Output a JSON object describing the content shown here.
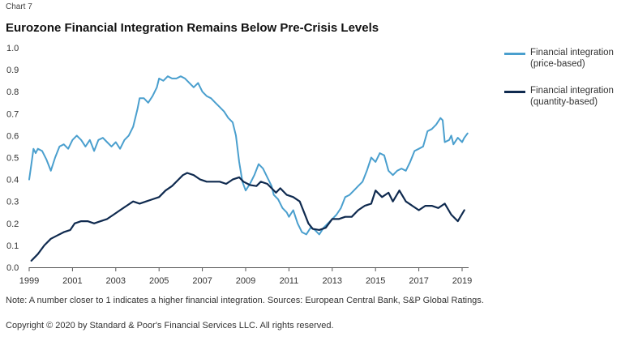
{
  "header": {
    "chart_label": "Chart 7",
    "title": "Eurozone Financial Integration Remains Below Pre-Crisis Levels"
  },
  "legend": {
    "items": [
      {
        "line1": "Financial integration",
        "line2": "(price-based)",
        "color": "#4a9fce"
      },
      {
        "line1": "Financial integration",
        "line2": "(quantity-based)",
        "color": "#0f2a4f"
      }
    ]
  },
  "footer": {
    "note": "Note: A number closer to 1 indicates a higher financial integration. Sources: European Central Bank, S&P Global Ratings.",
    "copyright": "Copyright © 2020 by Standard & Poor's Financial Services LLC. All rights reserved."
  },
  "chart_data": {
    "type": "line",
    "title": "Eurozone Financial Integration Remains Below Pre-Crisis Levels",
    "xlabel": "",
    "ylabel": "",
    "xlim": [
      1999,
      2019.3
    ],
    "ylim": [
      0,
      1.0
    ],
    "y_ticks": [
      "0.0",
      "0.1",
      "0.2",
      "0.3",
      "0.4",
      "0.5",
      "0.6",
      "0.7",
      "0.8",
      "0.9",
      "1.0"
    ],
    "x_ticks": [
      "1999",
      "2001",
      "2003",
      "2005",
      "2007",
      "2009",
      "2011",
      "2013",
      "2015",
      "2017",
      "2019"
    ],
    "grid": false,
    "legend_position": "right",
    "series": [
      {
        "name": "Financial integration (price-based)",
        "color": "#4a9fce",
        "points": [
          [
            1999.0,
            0.4
          ],
          [
            1999.1,
            0.47
          ],
          [
            1999.2,
            0.54
          ],
          [
            1999.3,
            0.52
          ],
          [
            1999.4,
            0.54
          ],
          [
            1999.6,
            0.53
          ],
          [
            1999.8,
            0.49
          ],
          [
            2000.0,
            0.44
          ],
          [
            2000.2,
            0.5
          ],
          [
            2000.4,
            0.55
          ],
          [
            2000.6,
            0.56
          ],
          [
            2000.8,
            0.54
          ],
          [
            2001.0,
            0.58
          ],
          [
            2001.2,
            0.6
          ],
          [
            2001.4,
            0.58
          ],
          [
            2001.6,
            0.55
          ],
          [
            2001.8,
            0.58
          ],
          [
            2002.0,
            0.53
          ],
          [
            2002.2,
            0.58
          ],
          [
            2002.4,
            0.59
          ],
          [
            2002.6,
            0.57
          ],
          [
            2002.8,
            0.55
          ],
          [
            2003.0,
            0.57
          ],
          [
            2003.2,
            0.54
          ],
          [
            2003.4,
            0.58
          ],
          [
            2003.6,
            0.6
          ],
          [
            2003.8,
            0.64
          ],
          [
            2004.0,
            0.72
          ],
          [
            2004.1,
            0.77
          ],
          [
            2004.3,
            0.77
          ],
          [
            2004.5,
            0.75
          ],
          [
            2004.7,
            0.78
          ],
          [
            2004.9,
            0.82
          ],
          [
            2005.0,
            0.86
          ],
          [
            2005.2,
            0.85
          ],
          [
            2005.4,
            0.87
          ],
          [
            2005.6,
            0.86
          ],
          [
            2005.8,
            0.86
          ],
          [
            2006.0,
            0.87
          ],
          [
            2006.2,
            0.86
          ],
          [
            2006.4,
            0.84
          ],
          [
            2006.6,
            0.82
          ],
          [
            2006.8,
            0.84
          ],
          [
            2007.0,
            0.8
          ],
          [
            2007.2,
            0.78
          ],
          [
            2007.4,
            0.77
          ],
          [
            2007.6,
            0.75
          ],
          [
            2007.8,
            0.73
          ],
          [
            2008.0,
            0.71
          ],
          [
            2008.2,
            0.68
          ],
          [
            2008.4,
            0.66
          ],
          [
            2008.55,
            0.6
          ],
          [
            2008.7,
            0.48
          ],
          [
            2008.85,
            0.39
          ],
          [
            2009.0,
            0.35
          ],
          [
            2009.2,
            0.38
          ],
          [
            2009.4,
            0.42
          ],
          [
            2009.6,
            0.47
          ],
          [
            2009.8,
            0.45
          ],
          [
            2010.0,
            0.41
          ],
          [
            2010.2,
            0.37
          ],
          [
            2010.3,
            0.33
          ],
          [
            2010.5,
            0.31
          ],
          [
            2010.7,
            0.27
          ],
          [
            2010.9,
            0.25
          ],
          [
            2011.0,
            0.23
          ],
          [
            2011.2,
            0.26
          ],
          [
            2011.4,
            0.2
          ],
          [
            2011.6,
            0.16
          ],
          [
            2011.8,
            0.15
          ],
          [
            2012.0,
            0.18
          ],
          [
            2012.2,
            0.17
          ],
          [
            2012.4,
            0.15
          ],
          [
            2012.6,
            0.18
          ],
          [
            2012.8,
            0.2
          ],
          [
            2013.0,
            0.22
          ],
          [
            2013.2,
            0.24
          ],
          [
            2013.4,
            0.27
          ],
          [
            2013.6,
            0.32
          ],
          [
            2013.8,
            0.33
          ],
          [
            2014.0,
            0.35
          ],
          [
            2014.2,
            0.37
          ],
          [
            2014.4,
            0.39
          ],
          [
            2014.6,
            0.44
          ],
          [
            2014.8,
            0.5
          ],
          [
            2015.0,
            0.48
          ],
          [
            2015.2,
            0.52
          ],
          [
            2015.4,
            0.51
          ],
          [
            2015.6,
            0.44
          ],
          [
            2015.8,
            0.42
          ],
          [
            2016.0,
            0.44
          ],
          [
            2016.2,
            0.45
          ],
          [
            2016.4,
            0.44
          ],
          [
            2016.6,
            0.48
          ],
          [
            2016.8,
            0.53
          ],
          [
            2017.0,
            0.54
          ],
          [
            2017.2,
            0.55
          ],
          [
            2017.4,
            0.62
          ],
          [
            2017.6,
            0.63
          ],
          [
            2017.8,
            0.65
          ],
          [
            2018.0,
            0.68
          ],
          [
            2018.1,
            0.67
          ],
          [
            2018.2,
            0.57
          ],
          [
            2018.4,
            0.58
          ],
          [
            2018.5,
            0.6
          ],
          [
            2018.6,
            0.56
          ],
          [
            2018.8,
            0.59
          ],
          [
            2019.0,
            0.57
          ],
          [
            2019.1,
            0.59
          ],
          [
            2019.25,
            0.61
          ]
        ]
      },
      {
        "name": "Financial integration (quantity-based)",
        "color": "#0f2a4f",
        "points": [
          [
            1999.1,
            0.03
          ],
          [
            1999.4,
            0.06
          ],
          [
            1999.7,
            0.1
          ],
          [
            2000.0,
            0.13
          ],
          [
            2000.3,
            0.145
          ],
          [
            2000.6,
            0.16
          ],
          [
            2000.9,
            0.17
          ],
          [
            2001.1,
            0.2
          ],
          [
            2001.4,
            0.21
          ],
          [
            2001.7,
            0.21
          ],
          [
            2002.0,
            0.2
          ],
          [
            2002.3,
            0.21
          ],
          [
            2002.6,
            0.22
          ],
          [
            2002.9,
            0.24
          ],
          [
            2003.2,
            0.26
          ],
          [
            2003.5,
            0.28
          ],
          [
            2003.8,
            0.3
          ],
          [
            2004.1,
            0.29
          ],
          [
            2004.4,
            0.3
          ],
          [
            2004.7,
            0.31
          ],
          [
            2005.0,
            0.32
          ],
          [
            2005.3,
            0.35
          ],
          [
            2005.6,
            0.37
          ],
          [
            2005.9,
            0.4
          ],
          [
            2006.1,
            0.42
          ],
          [
            2006.3,
            0.43
          ],
          [
            2006.6,
            0.42
          ],
          [
            2006.9,
            0.4
          ],
          [
            2007.2,
            0.39
          ],
          [
            2007.5,
            0.39
          ],
          [
            2007.8,
            0.39
          ],
          [
            2008.1,
            0.38
          ],
          [
            2008.4,
            0.4
          ],
          [
            2008.7,
            0.41
          ],
          [
            2008.9,
            0.39
          ],
          [
            2009.2,
            0.375
          ],
          [
            2009.5,
            0.37
          ],
          [
            2009.7,
            0.39
          ],
          [
            2010.0,
            0.38
          ],
          [
            2010.2,
            0.36
          ],
          [
            2010.4,
            0.34
          ],
          [
            2010.6,
            0.36
          ],
          [
            2010.9,
            0.33
          ],
          [
            2011.2,
            0.32
          ],
          [
            2011.5,
            0.3
          ],
          [
            2011.7,
            0.25
          ],
          [
            2011.9,
            0.2
          ],
          [
            2012.1,
            0.175
          ],
          [
            2012.4,
            0.17
          ],
          [
            2012.7,
            0.18
          ],
          [
            2013.0,
            0.22
          ],
          [
            2013.3,
            0.22
          ],
          [
            2013.6,
            0.23
          ],
          [
            2013.9,
            0.23
          ],
          [
            2014.2,
            0.26
          ],
          [
            2014.5,
            0.28
          ],
          [
            2014.8,
            0.29
          ],
          [
            2015.0,
            0.35
          ],
          [
            2015.3,
            0.32
          ],
          [
            2015.6,
            0.34
          ],
          [
            2015.8,
            0.3
          ],
          [
            2016.1,
            0.35
          ],
          [
            2016.4,
            0.3
          ],
          [
            2016.7,
            0.28
          ],
          [
            2017.0,
            0.26
          ],
          [
            2017.3,
            0.28
          ],
          [
            2017.6,
            0.28
          ],
          [
            2017.9,
            0.27
          ],
          [
            2018.2,
            0.29
          ],
          [
            2018.5,
            0.24
          ],
          [
            2018.8,
            0.21
          ],
          [
            2019.1,
            0.26
          ]
        ]
      }
    ]
  }
}
